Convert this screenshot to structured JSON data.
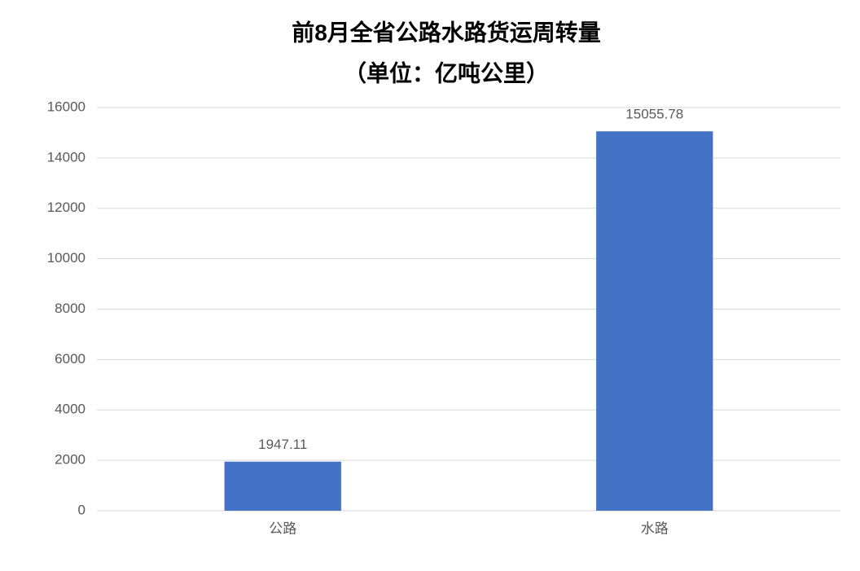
{
  "chart_data": {
    "type": "bar",
    "title": "前8月全省公路水路货运周转量",
    "subtitle": "（单位：亿吨公里）",
    "categories": [
      "公路",
      "水路"
    ],
    "values": [
      1947.11,
      15055.78
    ],
    "color": "#4472c4",
    "ylim": [
      0,
      16000
    ],
    "yticks": [
      0,
      2000,
      4000,
      6000,
      8000,
      10000,
      12000,
      14000,
      16000
    ],
    "grid": true,
    "data_labels": true
  }
}
